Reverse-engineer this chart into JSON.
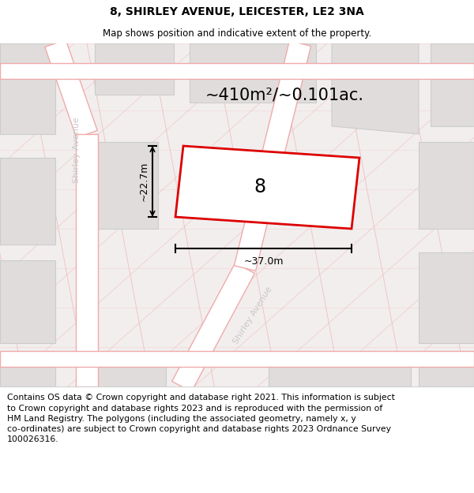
{
  "title": "8, SHIRLEY AVENUE, LEICESTER, LE2 3NA",
  "subtitle": "Map shows position and indicative extent of the property.",
  "footer_line1": "Contains OS data © Crown copyright and database right 2021. This information is subject",
  "footer_line2": "to Crown copyright and database rights 2023 and is reproduced with the permission of",
  "footer_line3": "HM Land Registry. The polygons (including the associated geometry, namely x, y",
  "footer_line4": "co-ordinates) are subject to Crown copyright and database rights 2023 Ordnance Survey",
  "footer_line5": "100026316.",
  "area_label": "~410m²/~0.101ac.",
  "width_label": "~37.0m",
  "height_label": "~22.7m",
  "number_label": "8",
  "map_bg": "#f2eeee",
  "road_fill": "#ffffff",
  "road_edge": "#f0aaaa",
  "bld_fill": "#e0dcdc",
  "bld_edge": "#cccccc",
  "plot_edge": "#dd0000",
  "plot_fill": "#ffffff",
  "title_fontsize": 10,
  "subtitle_fontsize": 8.5,
  "area_fontsize": 15,
  "dim_fontsize": 9,
  "number_fontsize": 17,
  "street_fontsize": 8,
  "footer_fontsize": 7.8,
  "title_color": "#000000",
  "street_label_color": "#c8c8c8"
}
